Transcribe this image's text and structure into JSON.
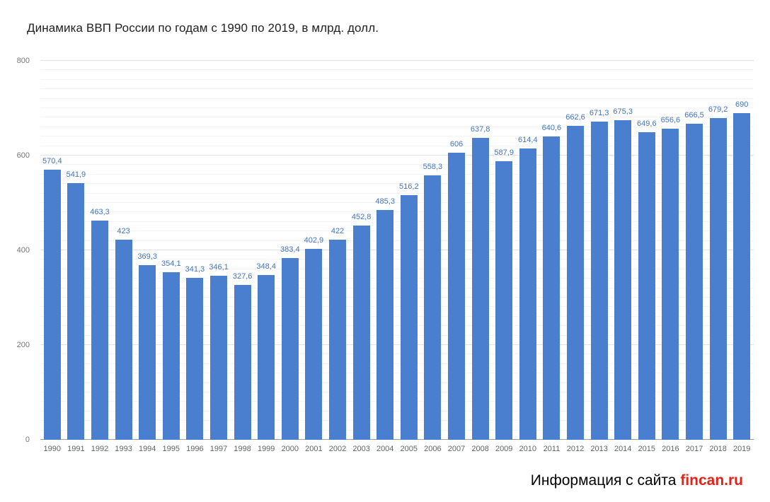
{
  "page": {
    "title": "Динамика ВВП России по годам с 1990 по 2019, в млрд. долл.",
    "footer_prefix": "Информация с сайта ",
    "footer_site": "fincan.ru"
  },
  "colors": {
    "bar": "#4a7fd0",
    "value_label": "#4273bf",
    "footer_site": "#e2231a"
  },
  "chart_data": {
    "type": "bar",
    "title": "Динамика ВВП России по годам с 1990 по 2019, в млрд. долл.",
    "xlabel": "",
    "ylabel": "",
    "categories": [
      "1990",
      "1991",
      "1992",
      "1993",
      "1994",
      "1995",
      "1996",
      "1997",
      "1998",
      "1999",
      "2000",
      "2001",
      "2002",
      "2003",
      "2004",
      "2005",
      "2006",
      "2007",
      "2008",
      "2009",
      "2010",
      "2011",
      "2012",
      "2013",
      "2014",
      "2015",
      "2016",
      "2017",
      "2018",
      "2019"
    ],
    "values": [
      570.4,
      541.9,
      463.3,
      423,
      369.3,
      354.1,
      341.3,
      346.1,
      327.6,
      348.4,
      383.4,
      402.9,
      422,
      452.8,
      485.3,
      516.2,
      558.3,
      606,
      637.8,
      587.9,
      614.4,
      640.6,
      662.6,
      671.3,
      675.3,
      649.6,
      656.6,
      666.5,
      679.2,
      690
    ],
    "value_labels": [
      "570,4",
      "541,9",
      "463,3",
      "423",
      "369,3",
      "354,1",
      "341,3",
      "346,1",
      "327,6",
      "348,4",
      "383,4",
      "402,9",
      "422",
      "452,8",
      "485,3",
      "516,2",
      "558,3",
      "606",
      "637,8",
      "587,9",
      "614,4",
      "640,6",
      "662,6",
      "671,3",
      "675,3",
      "649,6",
      "656,6",
      "666,5",
      "679,2",
      "690"
    ],
    "ylim": [
      0,
      800
    ],
    "yticks": [
      0,
      200,
      400,
      600,
      800
    ],
    "minor_grid_step": 20,
    "grid": "on",
    "legend": "none"
  }
}
